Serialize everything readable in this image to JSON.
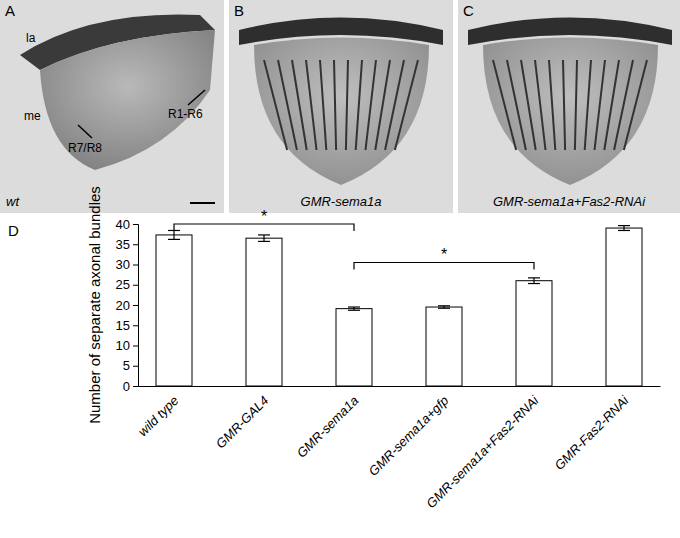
{
  "panels": [
    {
      "label": "A",
      "caption": "wt",
      "texts": [
        "la",
        "me",
        "R1-R6",
        "R7/R8"
      ]
    },
    {
      "label": "B",
      "caption": "GMR-sema1a"
    },
    {
      "label": "C",
      "caption": "GMR-sema1a+Fas2-RNAi"
    }
  ],
  "chart_label": "D",
  "chart_data": {
    "type": "bar",
    "y_label": "Number of separate axonal bundles",
    "categories": [
      "wild type",
      "GMR-GAL4",
      "GMR-sema1a",
      "GMR-sema1a+gfp",
      "GMR-sema1a+Fas2-RNAi",
      "GMR-Fas2-RNAi"
    ],
    "values": [
      37.3,
      36.5,
      19.1,
      19.5,
      26.0,
      39.0
    ],
    "errors": [
      1.1,
      0.8,
      0.4,
      0.3,
      0.7,
      0.6
    ],
    "color": "#ffffff",
    "ylim": [
      0,
      40
    ],
    "yticks": [
      0,
      5,
      10,
      15,
      20,
      25,
      30,
      35,
      40
    ],
    "grid": false,
    "annotations": [
      {
        "text": "*",
        "from": 0,
        "to": 2,
        "y": 40
      },
      {
        "text": "*",
        "from": 2,
        "to": 4,
        "y": 30.5
      }
    ]
  }
}
